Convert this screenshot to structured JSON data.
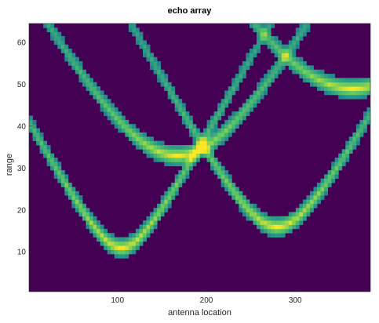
{
  "chart_data": {
    "type": "heatmap",
    "title": "echo array",
    "xlabel": "antenna location",
    "ylabel": "range",
    "xlim": [
      1,
      384
    ],
    "ylim": [
      1,
      64
    ],
    "xticks": [
      100,
      200,
      300
    ],
    "yticks": [
      10,
      20,
      30,
      40,
      50,
      60
    ],
    "colormap": "viridis",
    "background_color": "#440154",
    "grid": false,
    "targets": [
      {
        "x": 105,
        "min_range": 11
      },
      {
        "x": 168,
        "min_range": 33
      },
      {
        "x": 280,
        "min_range": 16
      },
      {
        "x": 365,
        "min_range": 49
      }
    ]
  }
}
